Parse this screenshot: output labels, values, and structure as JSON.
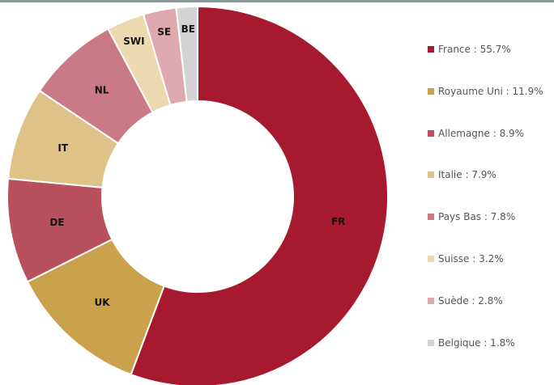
{
  "chart_data": {
    "type": "pie",
    "subtype": "donut",
    "slices": [
      {
        "label": "FR",
        "legend": "France : 55.7%",
        "value": 55.7,
        "color": "#a6192e"
      },
      {
        "label": "UK",
        "legend": "Royaume Uni : 11.9%",
        "value": 11.9,
        "color": "#c9a24b"
      },
      {
        "label": "DE",
        "legend": "Allemagne : 8.9%",
        "value": 8.9,
        "color": "#b9505e"
      },
      {
        "label": "IT",
        "legend": "Italie : 7.9%",
        "value": 7.9,
        "color": "#dfc287"
      },
      {
        "label": "NL",
        "legend": "Pays Bas : 7.8%",
        "value": 7.8,
        "color": "#c97a84"
      },
      {
        "label": "SWI",
        "legend": "Suisse : 3.2%",
        "value": 3.2,
        "color": "#ecd9b0"
      },
      {
        "label": "SE",
        "legend": "Suède : 2.8%",
        "value": 2.8,
        "color": "#dfa9b0"
      },
      {
        "label": "BE",
        "legend": "Belgique : 1.8%",
        "value": 1.8,
        "color": "#d3d3d6"
      }
    ],
    "legend_position": "right"
  },
  "colors": {
    "header_rule": "#8a9a98"
  }
}
